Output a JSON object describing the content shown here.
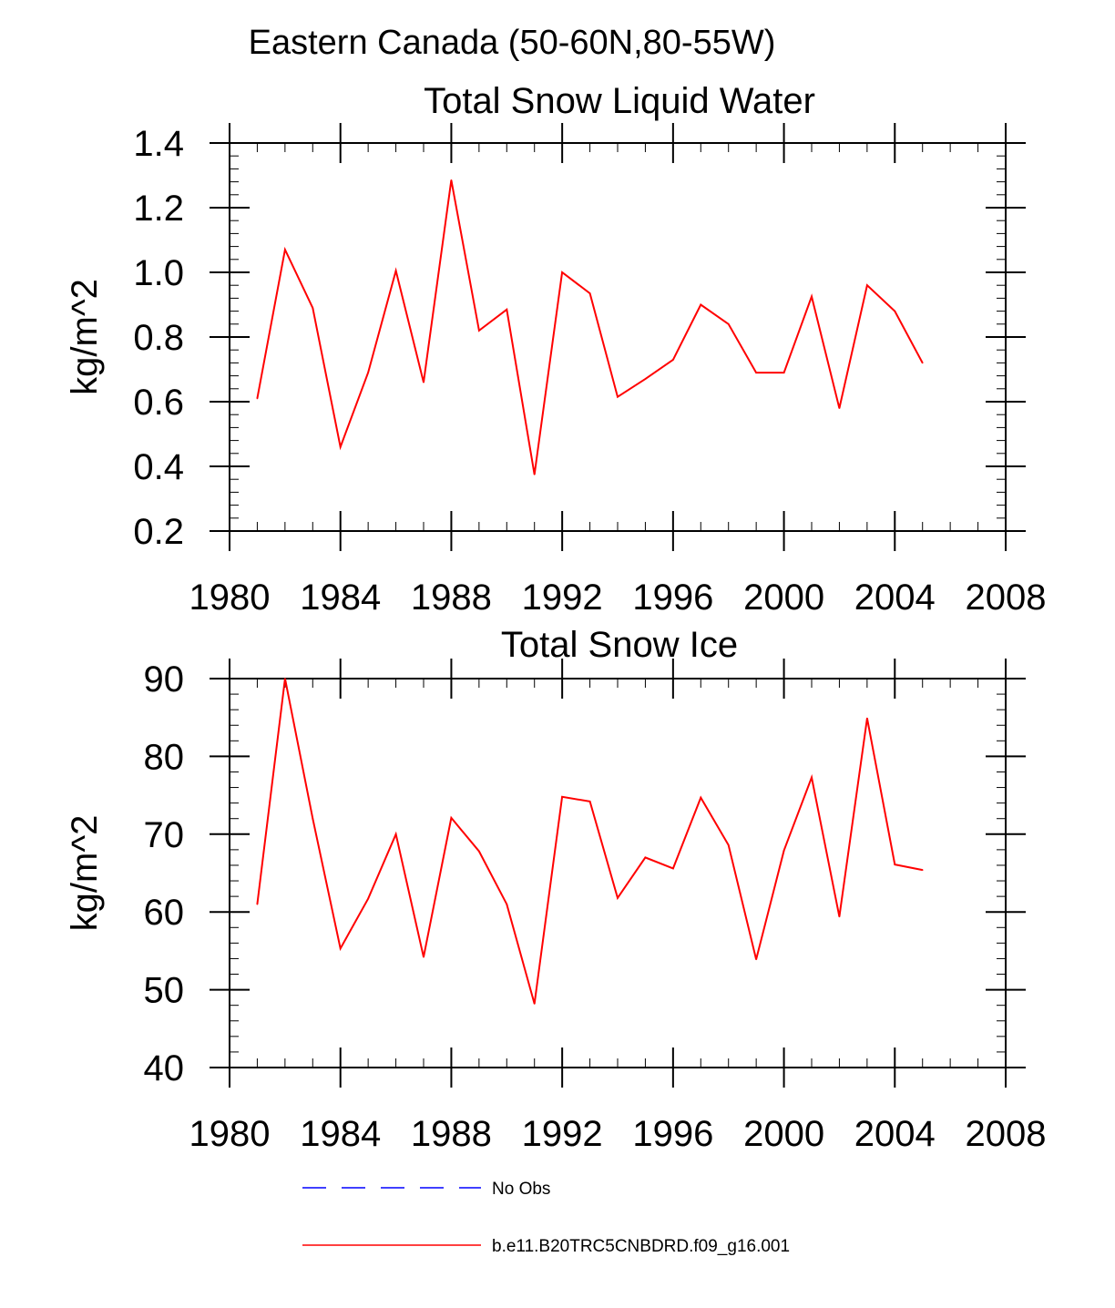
{
  "figure": {
    "title": "Eastern Canada (50-60N,80-55W)"
  },
  "colors": {
    "model": "#ff0000",
    "obs": "#0000ff",
    "axis": "#000000"
  },
  "legend": {
    "entries": [
      {
        "label": "No Obs",
        "style": "dashed",
        "color": "#0000ff"
      },
      {
        "label": "b.e11.B20TRC5CNBDRD.f09_g16.001",
        "style": "solid",
        "color": "#ff0000"
      }
    ]
  },
  "chart_data": [
    {
      "type": "line",
      "title": "Total Snow Liquid Water",
      "xlabel": "",
      "ylabel": "kg/m^2",
      "xlim": [
        1980,
        2008
      ],
      "ylim": [
        0.2,
        1.4
      ],
      "xticks": [
        1980,
        1984,
        1988,
        1992,
        1996,
        2000,
        2004,
        2008
      ],
      "xtick_labels": [
        "1980",
        "1984",
        "1988",
        "1992",
        "1996",
        "2000",
        "2004",
        "2008"
      ],
      "yticks": [
        0.2,
        0.4,
        0.6,
        0.8,
        1.0,
        1.2,
        1.4
      ],
      "ytick_labels": [
        "0.2",
        "0.4",
        "0.6",
        "0.8",
        "1.0",
        "1.2",
        "1.4"
      ],
      "grid": false,
      "series": [
        {
          "name": "b.e11.B20TRC5CNBDRD.f09_g16.001",
          "x": [
            1981,
            1982,
            1983,
            1984,
            1985,
            1986,
            1987,
            1988,
            1989,
            1990,
            1991,
            1992,
            1993,
            1994,
            1995,
            1996,
            1997,
            1998,
            1999,
            2000,
            2001,
            2002,
            2003,
            2004,
            2005
          ],
          "values": [
            0.61,
            1.07,
            0.89,
            0.46,
            0.69,
            1.005,
            0.66,
            1.285,
            0.82,
            0.885,
            0.375,
            1.0,
            0.935,
            0.615,
            0.67,
            0.73,
            0.9,
            0.84,
            0.69,
            0.69,
            0.925,
            0.58,
            0.96,
            0.88,
            0.72
          ]
        }
      ]
    },
    {
      "type": "line",
      "title": "Total Snow Ice",
      "xlabel": "",
      "ylabel": "kg/m^2",
      "xlim": [
        1980,
        2008
      ],
      "ylim": [
        40,
        90
      ],
      "xticks": [
        1980,
        1984,
        1988,
        1992,
        1996,
        2000,
        2004,
        2008
      ],
      "xtick_labels": [
        "1980",
        "1984",
        "1988",
        "1992",
        "1996",
        "2000",
        "2004",
        "2008"
      ],
      "yticks": [
        40,
        50,
        60,
        70,
        80,
        90
      ],
      "ytick_labels": [
        "40",
        "50",
        "60",
        "70",
        "80",
        "90"
      ],
      "grid": false,
      "series": [
        {
          "name": "b.e11.B20TRC5CNBDRD.f09_g16.001",
          "x": [
            1981,
            1982,
            1983,
            1984,
            1985,
            1986,
            1987,
            1988,
            1989,
            1990,
            1991,
            1992,
            1993,
            1994,
            1995,
            1996,
            1997,
            1998,
            1999,
            2000,
            2001,
            2002,
            2003,
            2004,
            2005
          ],
          "values": [
            61,
            90,
            72,
            55.3,
            61.7,
            70,
            54.2,
            72.1,
            67.8,
            61,
            48.2,
            74.8,
            74.2,
            61.8,
            67,
            65.6,
            74.7,
            68.6,
            53.9,
            67.9,
            77.3,
            59.4,
            84.9,
            66.1,
            65.4
          ]
        }
      ]
    }
  ]
}
